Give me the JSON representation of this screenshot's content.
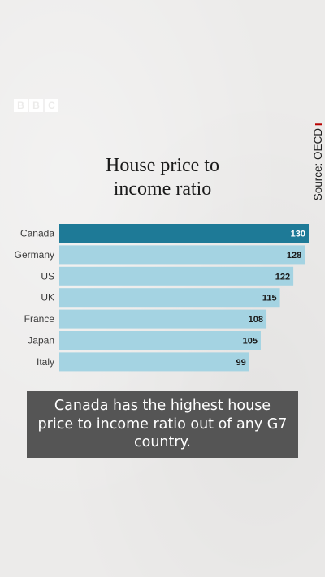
{
  "brand": {
    "letters": [
      "B",
      "B",
      "C"
    ]
  },
  "source": {
    "text": "Source: OECD",
    "marker_color": "#b80000"
  },
  "chart_data": {
    "type": "bar",
    "orientation": "horizontal",
    "title": "House price to income ratio",
    "title_lines": [
      "House price to",
      "income ratio"
    ],
    "categories": [
      "Canada",
      "Germany",
      "US",
      "UK",
      "France",
      "Japan",
      "Italy"
    ],
    "values": [
      130,
      128,
      122,
      115,
      108,
      105,
      99
    ],
    "highlight": "Canada",
    "colors": {
      "highlight": "#1e7a97",
      "default": "#a4d3e2"
    },
    "xlim": [
      0,
      130
    ],
    "grid": false,
    "legend": "none"
  },
  "caption": {
    "text": "Canada has the highest house price to income ratio out of any G7 country."
  }
}
